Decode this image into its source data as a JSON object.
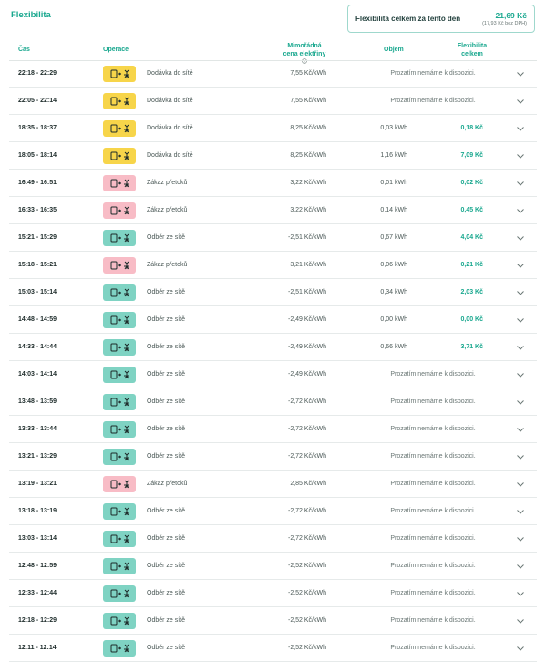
{
  "header": {
    "title": "Flexibilita",
    "summary": {
      "label": "Flexibilita celkem za tento den",
      "total": "21,69 Kč",
      "total_net": "(17,93 Kč bez DPH)"
    }
  },
  "table": {
    "columns": {
      "time": "Čas",
      "operation": "Operace",
      "price": "Mimořádná cena elektřiny",
      "volume": "Objem",
      "flexibility": "Flexibilita celkem"
    },
    "rows": [
      {
        "time": "22:18 - 22:29",
        "operation": "Dodávka do sítě",
        "badge_color": "#f7d54a",
        "price": "7,55 Kč/kWh",
        "note": "Prozatím nemáme k dispozici."
      },
      {
        "time": "22:05 - 22:14",
        "operation": "Dodávka do sítě",
        "badge_color": "#f7d54a",
        "price": "7,55 Kč/kWh",
        "note": "Prozatím nemáme k dispozici."
      },
      {
        "time": "18:35 - 18:37",
        "operation": "Dodávka do sítě",
        "badge_color": "#f7d54a",
        "price": "8,25 Kč/kWh",
        "volume": "0,03 kWh",
        "flexibility": "0,18 Kč"
      },
      {
        "time": "18:05 - 18:14",
        "operation": "Dodávka do sítě",
        "badge_color": "#f7d54a",
        "price": "8,25 Kč/kWh",
        "volume": "1,16 kWh",
        "flexibility": "7,09 Kč"
      },
      {
        "time": "16:49 - 16:51",
        "operation": "Zákaz přetoků",
        "badge_color": "#f8bcc6",
        "price": "3,22 Kč/kWh",
        "volume": "0,01 kWh",
        "flexibility": "0,02 Kč"
      },
      {
        "time": "16:33 - 16:35",
        "operation": "Zákaz přetoků",
        "badge_color": "#f8bcc6",
        "price": "3,22 Kč/kWh",
        "volume": "0,14 kWh",
        "flexibility": "0,45 Kč"
      },
      {
        "time": "15:21 - 15:29",
        "operation": "Odběr ze sítě",
        "badge_color": "#7fd3c3",
        "price": "-2,51 Kč/kWh",
        "volume": "0,67 kWh",
        "flexibility": "4,04 Kč"
      },
      {
        "time": "15:18 - 15:21",
        "operation": "Zákaz přetoků",
        "badge_color": "#f8bcc6",
        "price": "3,21 Kč/kWh",
        "volume": "0,06 kWh",
        "flexibility": "0,21 Kč"
      },
      {
        "time": "15:03 - 15:14",
        "operation": "Odběr ze sítě",
        "badge_color": "#7fd3c3",
        "price": "-2,51 Kč/kWh",
        "volume": "0,34 kWh",
        "flexibility": "2,03 Kč"
      },
      {
        "time": "14:48 - 14:59",
        "operation": "Odběr ze sítě",
        "badge_color": "#7fd3c3",
        "price": "-2,49 Kč/kWh",
        "volume": "0,00 kWh",
        "flexibility": "0,00 Kč"
      },
      {
        "time": "14:33 - 14:44",
        "operation": "Odběr ze sítě",
        "badge_color": "#7fd3c3",
        "price": "-2,49 Kč/kWh",
        "volume": "0,66 kWh",
        "flexibility": "3,71 Kč"
      },
      {
        "time": "14:03 - 14:14",
        "operation": "Odběr ze sítě",
        "badge_color": "#7fd3c3",
        "price": "-2,49 Kč/kWh",
        "note": "Prozatím nemáme k dispozici."
      },
      {
        "time": "13:48 - 13:59",
        "operation": "Odběr ze sítě",
        "badge_color": "#7fd3c3",
        "price": "-2,72 Kč/kWh",
        "note": "Prozatím nemáme k dispozici."
      },
      {
        "time": "13:33 - 13:44",
        "operation": "Odběr ze sítě",
        "badge_color": "#7fd3c3",
        "price": "-2,72 Kč/kWh",
        "note": "Prozatím nemáme k dispozici."
      },
      {
        "time": "13:21 - 13:29",
        "operation": "Odběr ze sítě",
        "badge_color": "#7fd3c3",
        "price": "-2,72 Kč/kWh",
        "note": "Prozatím nemáme k dispozici."
      },
      {
        "time": "13:19 - 13:21",
        "operation": "Zákaz přetoků",
        "badge_color": "#f8bcc6",
        "price": "2,85 Kč/kWh",
        "note": "Prozatím nemáme k dispozici."
      },
      {
        "time": "13:18 - 13:19",
        "operation": "Odběr ze sítě",
        "badge_color": "#7fd3c3",
        "price": "-2,72 Kč/kWh",
        "note": "Prozatím nemáme k dispozici."
      },
      {
        "time": "13:03 - 13:14",
        "operation": "Odběr ze sítě",
        "badge_color": "#7fd3c3",
        "price": "-2,72 Kč/kWh",
        "note": "Prozatím nemáme k dispozici."
      },
      {
        "time": "12:48 - 12:59",
        "operation": "Odběr ze sítě",
        "badge_color": "#7fd3c3",
        "price": "-2,52 Kč/kWh",
        "note": "Prozatím nemáme k dispozici."
      },
      {
        "time": "12:33 - 12:44",
        "operation": "Odběr ze sítě",
        "badge_color": "#7fd3c3",
        "price": "-2,52 Kč/kWh",
        "note": "Prozatím nemáme k dispozici."
      },
      {
        "time": "12:18 - 12:29",
        "operation": "Odběr ze sítě",
        "badge_color": "#7fd3c3",
        "price": "-2,52 Kč/kWh",
        "note": "Prozatím nemáme k dispozici."
      },
      {
        "time": "12:11 - 12:14",
        "operation": "Odběr ze sítě",
        "badge_color": "#7fd3c3",
        "price": "-2,52 Kč/kWh",
        "note": "Prozatím nemáme k dispozici."
      }
    ]
  }
}
